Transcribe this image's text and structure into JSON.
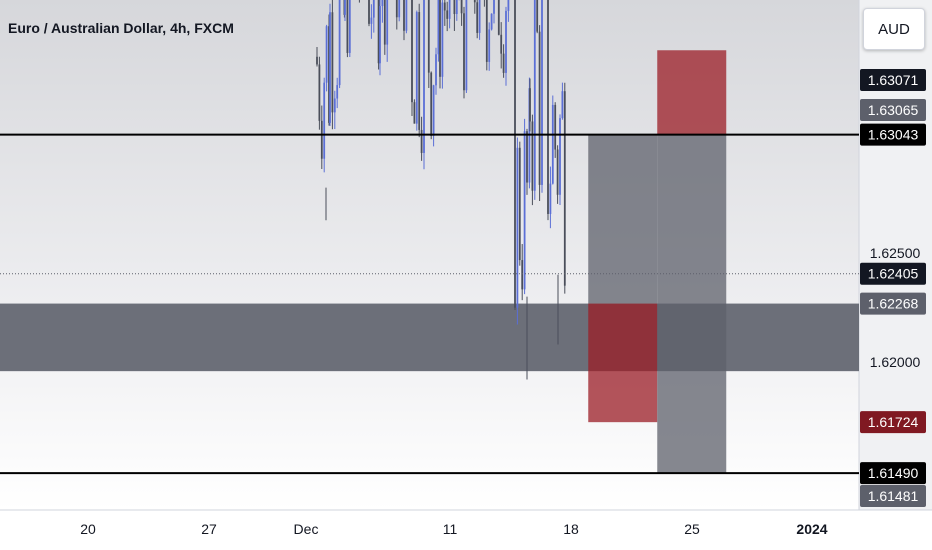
{
  "title": "Euro / Australian Dollar, 4h, FXCM",
  "currency_button": "AUD",
  "chart_data": {
    "type": "candlestick",
    "symbol": "Euro / Australian Dollar",
    "interval": "4h",
    "source": "FXCM",
    "x_ticks": [
      "20",
      "27",
      "Dec",
      "11",
      "18",
      "25",
      "2024"
    ],
    "y_ticks": [
      1.625,
      1.62
    ],
    "ylim": [
      1.6132,
      1.6365
    ],
    "price_labels": [
      {
        "value": 1.63071,
        "text": "1.63071",
        "bg": "#131722",
        "fg": "#ffffff"
      },
      {
        "value": 1.63065,
        "text": "1.63065",
        "bg": "#5d606b",
        "fg": "#ffffff"
      },
      {
        "value": 1.63043,
        "text": "1.63043",
        "bg": "#000000",
        "fg": "#ffffff"
      },
      {
        "value": 1.62405,
        "text": "1.62405",
        "bg": "#131722",
        "fg": "#ffffff"
      },
      {
        "value": 1.62268,
        "text": "1.62268",
        "bg": "#5d606b",
        "fg": "#ffffff"
      },
      {
        "value": 1.61724,
        "text": "1.61724",
        "bg": "#801922",
        "fg": "#ffffff"
      },
      {
        "value": 1.6149,
        "text": "1.61490",
        "bg": "#000000",
        "fg": "#ffffff"
      },
      {
        "value": 1.61481,
        "text": "1.61481",
        "bg": "#5d606b",
        "fg": "#ffffff"
      }
    ],
    "horizontal_lines": [
      {
        "value": 1.63043,
        "color": "#000000"
      },
      {
        "value": 1.6149,
        "color": "#000000"
      }
    ],
    "current_price": 1.62405,
    "zone": {
      "from": 1.62268,
      "to": 1.61958,
      "color": "#5d606b"
    },
    "boxes": [
      {
        "x0": "Dec 18",
        "x1": "Dec 22",
        "top": 1.63043,
        "bottom": 1.62268,
        "color": "#5d606b"
      },
      {
        "x0": "Dec 18",
        "x1": "Dec 22",
        "top": 1.62268,
        "bottom": 1.61724,
        "color": "#9b1c26"
      },
      {
        "x0": "Dec 22",
        "x1": "Dec 26",
        "top": 1.6343,
        "bottom": 1.63043,
        "color": "#9b1c26"
      },
      {
        "x0": "Dec 22",
        "x1": "Dec 26",
        "top": 1.63043,
        "bottom": 1.6149,
        "color": "#5d606b"
      }
    ],
    "colors": {
      "up": "#5b6fd6",
      "down": "#4a4e5a",
      "grid": "#e6e6e6"
    }
  }
}
